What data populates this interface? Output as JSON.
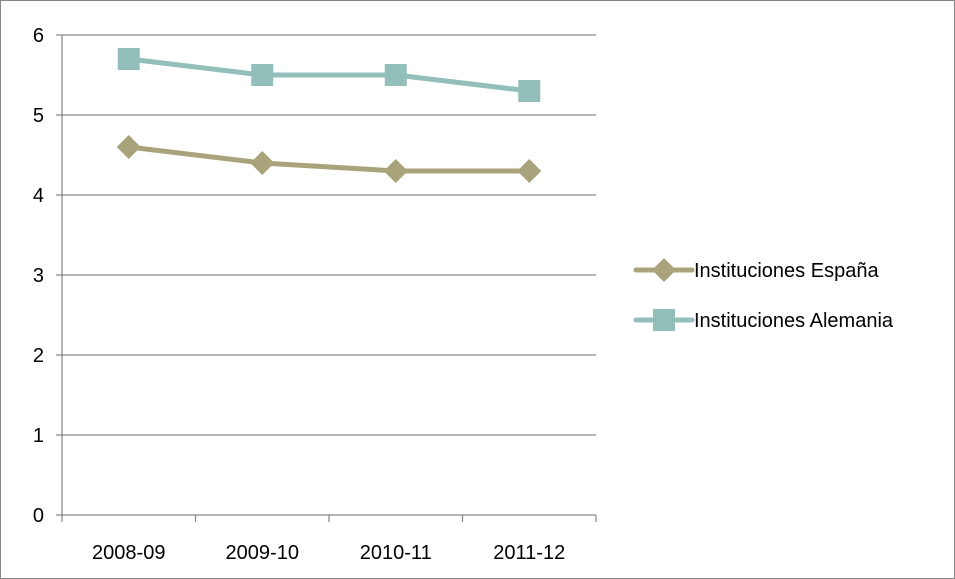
{
  "chart_data": {
    "type": "line",
    "categories": [
      "2008-09",
      "2009-10",
      "2010-11",
      "2011-12"
    ],
    "series": [
      {
        "name": "Instituciones España",
        "values": [
          4.6,
          4.4,
          4.3,
          4.3
        ],
        "color": "#A8A37A",
        "marker": "diamond"
      },
      {
        "name": "Instituciones Alemania",
        "values": [
          5.7,
          5.5,
          5.5,
          5.3
        ],
        "color": "#93BFBB",
        "marker": "square"
      }
    ],
    "ylim": [
      0,
      6
    ],
    "yticks": [
      "0",
      "1",
      "2",
      "3",
      "4",
      "5",
      "6"
    ],
    "grid": true,
    "legend_position": "right"
  }
}
